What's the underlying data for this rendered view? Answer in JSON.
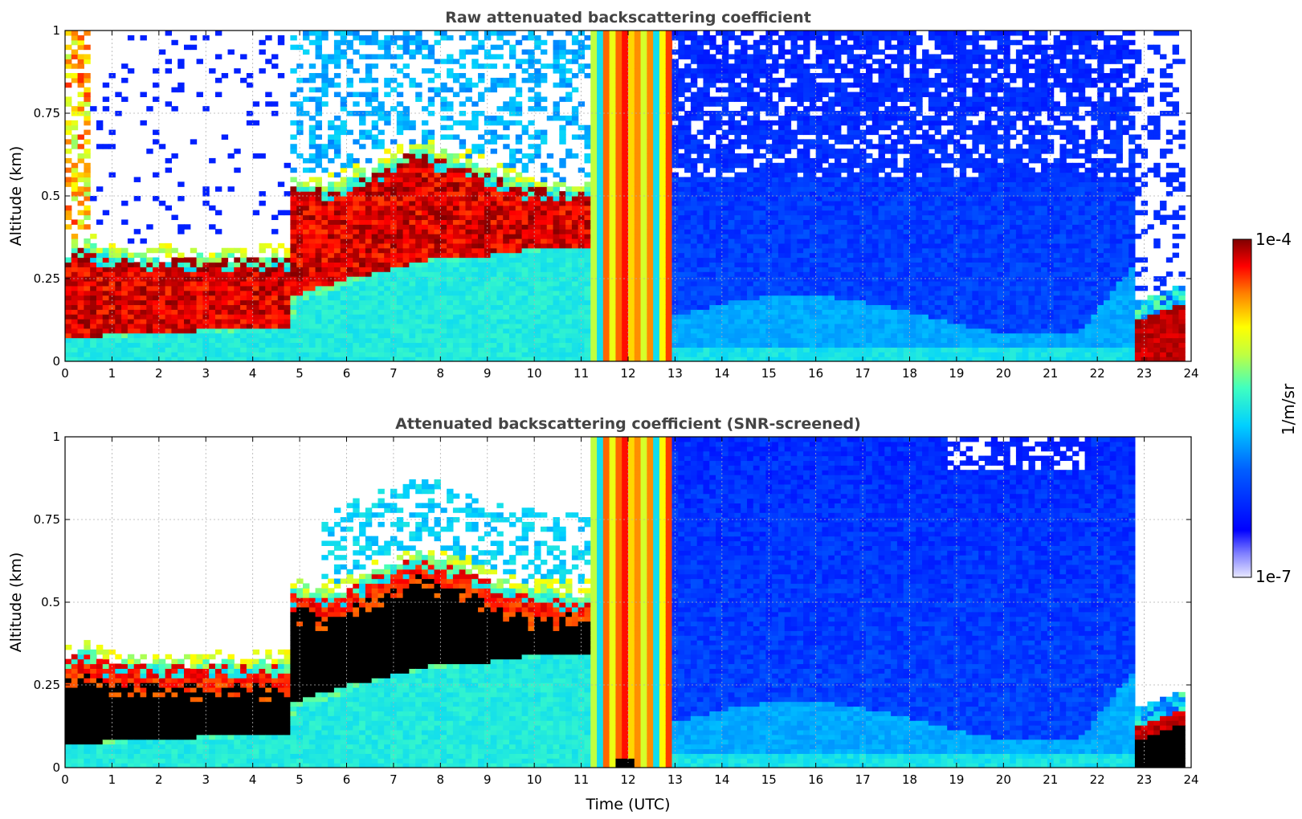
{
  "chart_data": [
    {
      "type": "heatmap",
      "title": "Raw attenuated backscattering coefficient",
      "xlabel": "",
      "ylabel": "Altitude (km)",
      "xlim": [
        0,
        24
      ],
      "ylim": [
        0,
        1
      ],
      "xticks": [
        "0",
        "1",
        "2",
        "3",
        "4",
        "5",
        "6",
        "7",
        "8",
        "9",
        "10",
        "11",
        "12",
        "13",
        "14",
        "15",
        "16",
        "17",
        "18",
        "19",
        "20",
        "21",
        "22",
        "23",
        "24"
      ],
      "yticks": [
        "0",
        "0.25",
        "0.5",
        "0.75",
        "1"
      ],
      "yticks_values": [
        0,
        0.25,
        0.5,
        0.75,
        1
      ],
      "grid": true,
      "features": {
        "dense_layer_top_km": [
          [
            0,
            0.3
          ],
          [
            4.7,
            0.3
          ],
          [
            4.8,
            0.55
          ],
          [
            7,
            0.6
          ],
          [
            10.8,
            0.5
          ],
          [
            11.2,
            1.0
          ],
          [
            12.9,
            1.0
          ],
          [
            13,
            0.0
          ]
        ],
        "precipitation_band_utc": [
          11.2,
          12.9
        ],
        "late_layer_utc": [
          22.7,
          23.8
        ]
      }
    },
    {
      "type": "heatmap",
      "title": "Attenuated backscattering coefficient (SNR-screened)",
      "xlabel": "Time (UTC)",
      "ylabel": "Altitude (km)",
      "xlim": [
        0,
        24
      ],
      "ylim": [
        0,
        1
      ],
      "xticks": [
        "0",
        "1",
        "2",
        "3",
        "4",
        "5",
        "6",
        "7",
        "8",
        "9",
        "10",
        "11",
        "12",
        "13",
        "14",
        "15",
        "16",
        "17",
        "18",
        "19",
        "20",
        "21",
        "22",
        "23",
        "24"
      ],
      "yticks": [
        "0",
        "0.25",
        "0.5",
        "0.75",
        "1"
      ],
      "yticks_values": [
        0,
        0.25,
        0.5,
        0.75,
        1
      ],
      "grid": true,
      "screened_color": "#000000"
    }
  ],
  "colorbar": {
    "label": "1/m/sr",
    "max_label": "1e-4",
    "min_label": "1e-7",
    "scale": "log",
    "range": [
      1e-07,
      0.0001
    ],
    "colormap": "jet"
  },
  "colors": {
    "dark_red": "#800000",
    "red": "#ff0000",
    "yellow": "#ffff00",
    "cyan": "#00ffff",
    "blue": "#0000ff",
    "title_gray": "#444444"
  }
}
